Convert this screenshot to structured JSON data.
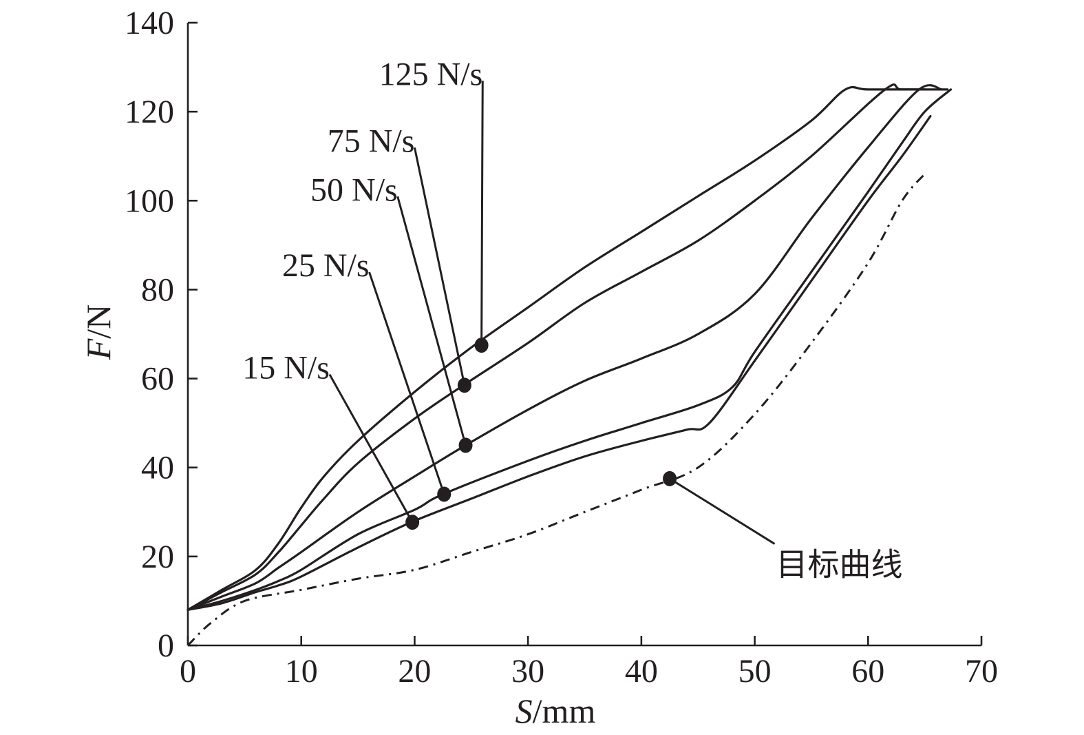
{
  "chart_data": {
    "type": "line",
    "title": "",
    "xlabel": {
      "italic": "S",
      "rest": "/mm"
    },
    "ylabel": {
      "italic": "F",
      "rest": "/N"
    },
    "xlim": [
      0,
      70
    ],
    "ylim": [
      0,
      140
    ],
    "xticks": [
      0,
      10,
      20,
      30,
      40,
      50,
      60,
      70
    ],
    "yticks": [
      0,
      20,
      40,
      60,
      80,
      100,
      120,
      140
    ],
    "grid": false,
    "legend": "callout labels with leader lines",
    "series": [
      {
        "name": "125 N/s",
        "style": "solid",
        "points": [
          [
            0,
            8
          ],
          [
            3,
            12.5
          ],
          [
            6,
            17
          ],
          [
            8,
            23
          ],
          [
            10,
            31
          ],
          [
            12,
            38
          ],
          [
            15,
            46
          ],
          [
            20,
            57
          ],
          [
            25,
            67
          ],
          [
            30,
            76
          ],
          [
            35,
            85
          ],
          [
            40,
            93
          ],
          [
            45,
            101
          ],
          [
            50,
            109
          ],
          [
            55,
            118
          ],
          [
            58,
            125
          ],
          [
            60,
            125
          ],
          [
            65,
            125
          ]
        ],
        "marker": [
          25.9,
          67.5
        ],
        "label_pos": [
          26,
          126
        ]
      },
      {
        "name": "75 N/s",
        "style": "solid",
        "points": [
          [
            0,
            8
          ],
          [
            3,
            12
          ],
          [
            6,
            16
          ],
          [
            8,
            21
          ],
          [
            10,
            27
          ],
          [
            12,
            33
          ],
          [
            15,
            41
          ],
          [
            20,
            51
          ],
          [
            24.3,
            58.5
          ],
          [
            30,
            68
          ],
          [
            35,
            77
          ],
          [
            40,
            84
          ],
          [
            45,
            91
          ],
          [
            50,
            100
          ],
          [
            55,
            110
          ],
          [
            61.5,
            125
          ],
          [
            63,
            125
          ],
          [
            67,
            125
          ]
        ],
        "marker": [
          24.4,
          58.5
        ],
        "label_pos": [
          20,
          111
        ]
      },
      {
        "name": "50 N/s",
        "style": "solid",
        "points": [
          [
            0,
            8
          ],
          [
            3,
            11
          ],
          [
            6,
            14
          ],
          [
            8,
            17.5
          ],
          [
            10,
            21
          ],
          [
            15,
            30
          ],
          [
            20,
            38
          ],
          [
            24.5,
            45
          ],
          [
            30,
            53
          ],
          [
            35,
            59.5
          ],
          [
            40,
            64.5
          ],
          [
            45,
            70
          ],
          [
            50,
            79
          ],
          [
            55,
            96
          ],
          [
            60,
            112
          ],
          [
            64.5,
            125
          ],
          [
            66.5,
            125
          ]
        ],
        "marker": [
          24.5,
          45
        ],
        "label_pos": [
          18.5,
          100
        ]
      },
      {
        "name": "25 N/s",
        "style": "solid",
        "points": [
          [
            0,
            8
          ],
          [
            3,
            10
          ],
          [
            6,
            12.5
          ],
          [
            8,
            14.5
          ],
          [
            10,
            17
          ],
          [
            15,
            25
          ],
          [
            20,
            30.5
          ],
          [
            22.5,
            34
          ],
          [
            30,
            41.5
          ],
          [
            35,
            46
          ],
          [
            40,
            50
          ],
          [
            45,
            54
          ],
          [
            48,
            58
          ],
          [
            50,
            66
          ],
          [
            55,
            84
          ],
          [
            60,
            102
          ],
          [
            63,
            113
          ],
          [
            65,
            120
          ],
          [
            67.3,
            125
          ]
        ],
        "marker": [
          22.6,
          34
        ],
        "label_pos": [
          16,
          83
        ]
      },
      {
        "name": "15 N/s",
        "style": "solid",
        "points": [
          [
            0,
            8
          ],
          [
            3,
            9.5
          ],
          [
            6,
            12
          ],
          [
            8,
            13.5
          ],
          [
            10,
            15.5
          ],
          [
            15,
            22
          ],
          [
            19.7,
            27.7
          ],
          [
            25,
            33
          ],
          [
            30,
            38
          ],
          [
            35,
            42.5
          ],
          [
            40,
            46
          ],
          [
            44,
            48.5
          ],
          [
            46,
            50
          ],
          [
            50,
            64
          ],
          [
            55,
            82
          ],
          [
            60,
            100
          ],
          [
            63,
            110
          ],
          [
            65.5,
            119
          ]
        ],
        "marker": [
          19.8,
          27.7
        ],
        "label_pos": [
          12.5,
          60
        ]
      },
      {
        "name": "目标曲线",
        "style": "dashdot",
        "points": [
          [
            0,
            0
          ],
          [
            2,
            5
          ],
          [
            5,
            10
          ],
          [
            10,
            12.5
          ],
          [
            15,
            15
          ],
          [
            20,
            17
          ],
          [
            25,
            21
          ],
          [
            30,
            25
          ],
          [
            35,
            30
          ],
          [
            40,
            35
          ],
          [
            45,
            40
          ],
          [
            50,
            52
          ],
          [
            55,
            68
          ],
          [
            60,
            86
          ],
          [
            63,
            100
          ],
          [
            65,
            106
          ]
        ],
        "marker": [
          42.5,
          37.5
        ],
        "label_pos": [
          52,
          18.5
        ]
      }
    ]
  }
}
